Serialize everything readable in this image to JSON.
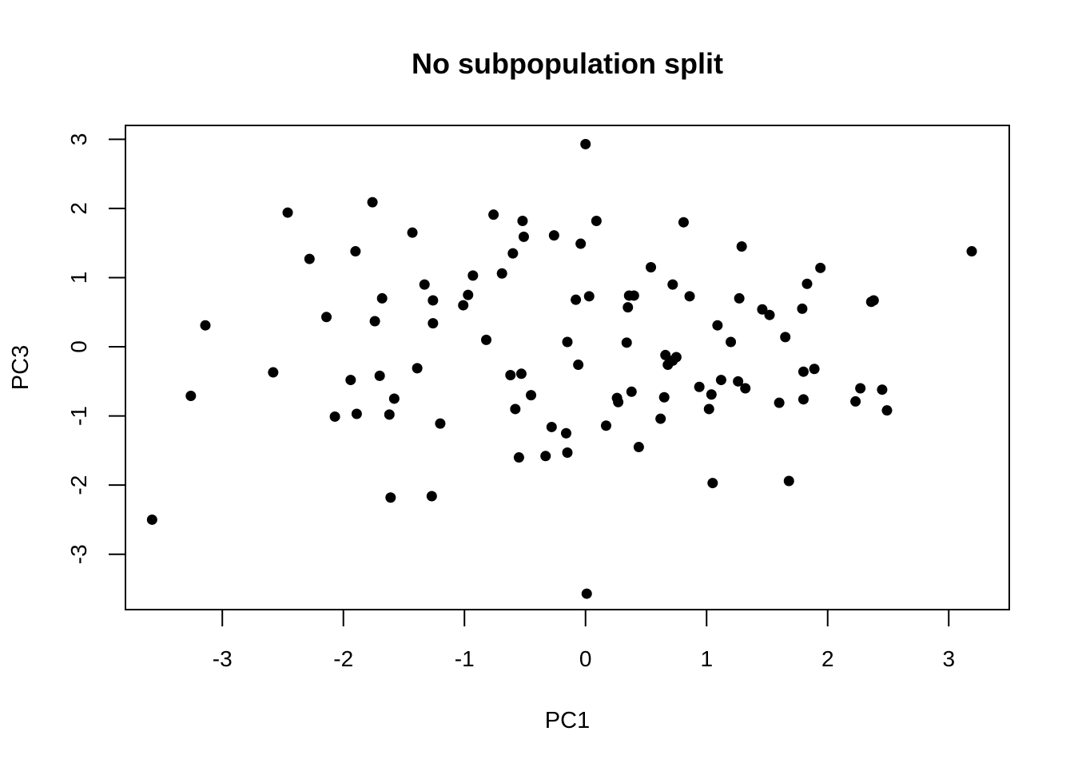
{
  "chart_data": {
    "type": "scatter",
    "title": "No subpopulation split",
    "xlabel": "PC1",
    "ylabel": "PC3",
    "xlim": [
      -3.8,
      3.5
    ],
    "ylim": [
      -3.8,
      3.2
    ],
    "x_ticks": [
      -3,
      -2,
      -1,
      0,
      1,
      2,
      3
    ],
    "y_ticks": [
      -3,
      -2,
      -1,
      0,
      1,
      2,
      3
    ],
    "x_tick_labels": [
      "-3",
      "-2",
      "-1",
      "0",
      "1",
      "2",
      "3"
    ],
    "y_tick_labels": [
      "-3",
      "-2",
      "-1",
      "0",
      "1",
      "2",
      "3"
    ],
    "grid": false,
    "legend": "none",
    "point_color": "#000000",
    "points": [
      [
        -3.58,
        -2.5
      ],
      [
        -3.26,
        -0.71
      ],
      [
        -3.14,
        0.31
      ],
      [
        -2.58,
        -0.37
      ],
      [
        -2.46,
        1.94
      ],
      [
        -2.28,
        1.27
      ],
      [
        -2.14,
        0.43
      ],
      [
        -2.07,
        -1.01
      ],
      [
        -1.94,
        -0.48
      ],
      [
        -1.9,
        1.38
      ],
      [
        -1.89,
        -0.97
      ],
      [
        -1.76,
        2.09
      ],
      [
        -1.74,
        0.37
      ],
      [
        -1.7,
        -0.42
      ],
      [
        -1.68,
        0.7
      ],
      [
        -1.62,
        -0.98
      ],
      [
        -1.61,
        -2.18
      ],
      [
        -1.58,
        -0.75
      ],
      [
        -1.43,
        1.65
      ],
      [
        -1.39,
        -0.31
      ],
      [
        -1.33,
        0.9
      ],
      [
        -1.27,
        -2.16
      ],
      [
        -1.26,
        0.67
      ],
      [
        -1.26,
        0.34
      ],
      [
        -1.2,
        -1.11
      ],
      [
        -1.01,
        0.6
      ],
      [
        -0.97,
        0.75
      ],
      [
        -0.93,
        1.03
      ],
      [
        -0.82,
        0.1
      ],
      [
        -0.76,
        1.91
      ],
      [
        -0.69,
        1.06
      ],
      [
        -0.62,
        -0.41
      ],
      [
        -0.6,
        1.35
      ],
      [
        -0.58,
        -0.9
      ],
      [
        -0.55,
        -1.6
      ],
      [
        -0.53,
        -0.39
      ],
      [
        -0.52,
        1.82
      ],
      [
        -0.51,
        1.59
      ],
      [
        -0.45,
        -0.7
      ],
      [
        -0.33,
        -1.58
      ],
      [
        -0.28,
        -1.16
      ],
      [
        -0.26,
        1.61
      ],
      [
        -0.16,
        -1.25
      ],
      [
        -0.15,
        -1.53
      ],
      [
        -0.15,
        0.07
      ],
      [
        -0.08,
        0.68
      ],
      [
        -0.06,
        -0.26
      ],
      [
        -0.04,
        1.49
      ],
      [
        0.0,
        2.93
      ],
      [
        0.01,
        -3.57
      ],
      [
        0.03,
        0.73
      ],
      [
        0.09,
        1.82
      ],
      [
        0.17,
        -1.14
      ],
      [
        0.26,
        -0.74
      ],
      [
        0.27,
        -0.8
      ],
      [
        0.34,
        0.06
      ],
      [
        0.35,
        0.57
      ],
      [
        0.36,
        0.74
      ],
      [
        0.38,
        -0.65
      ],
      [
        0.4,
        0.74
      ],
      [
        0.44,
        -1.45
      ],
      [
        0.54,
        1.15
      ],
      [
        0.62,
        -1.04
      ],
      [
        0.65,
        -0.73
      ],
      [
        0.66,
        -0.12
      ],
      [
        0.68,
        -0.26
      ],
      [
        0.72,
        -0.2
      ],
      [
        0.72,
        0.9
      ],
      [
        0.75,
        -0.15
      ],
      [
        0.81,
        1.8
      ],
      [
        0.86,
        0.73
      ],
      [
        0.94,
        -0.58
      ],
      [
        1.02,
        -0.9
      ],
      [
        1.04,
        -0.69
      ],
      [
        1.05,
        -1.97
      ],
      [
        1.09,
        0.31
      ],
      [
        1.12,
        -0.48
      ],
      [
        1.2,
        0.07
      ],
      [
        1.26,
        -0.5
      ],
      [
        1.27,
        0.7
      ],
      [
        1.29,
        1.45
      ],
      [
        1.32,
        -0.6
      ],
      [
        1.46,
        0.54
      ],
      [
        1.52,
        0.46
      ],
      [
        1.6,
        -0.81
      ],
      [
        1.65,
        0.14
      ],
      [
        1.68,
        -1.94
      ],
      [
        1.79,
        0.55
      ],
      [
        1.8,
        -0.76
      ],
      [
        1.8,
        -0.36
      ],
      [
        1.83,
        0.91
      ],
      [
        1.89,
        -0.32
      ],
      [
        1.94,
        1.14
      ],
      [
        2.23,
        -0.79
      ],
      [
        2.27,
        -0.6
      ],
      [
        2.36,
        0.65
      ],
      [
        2.38,
        0.67
      ],
      [
        2.45,
        -0.62
      ],
      [
        2.49,
        -0.92
      ],
      [
        3.19,
        1.38
      ]
    ]
  }
}
